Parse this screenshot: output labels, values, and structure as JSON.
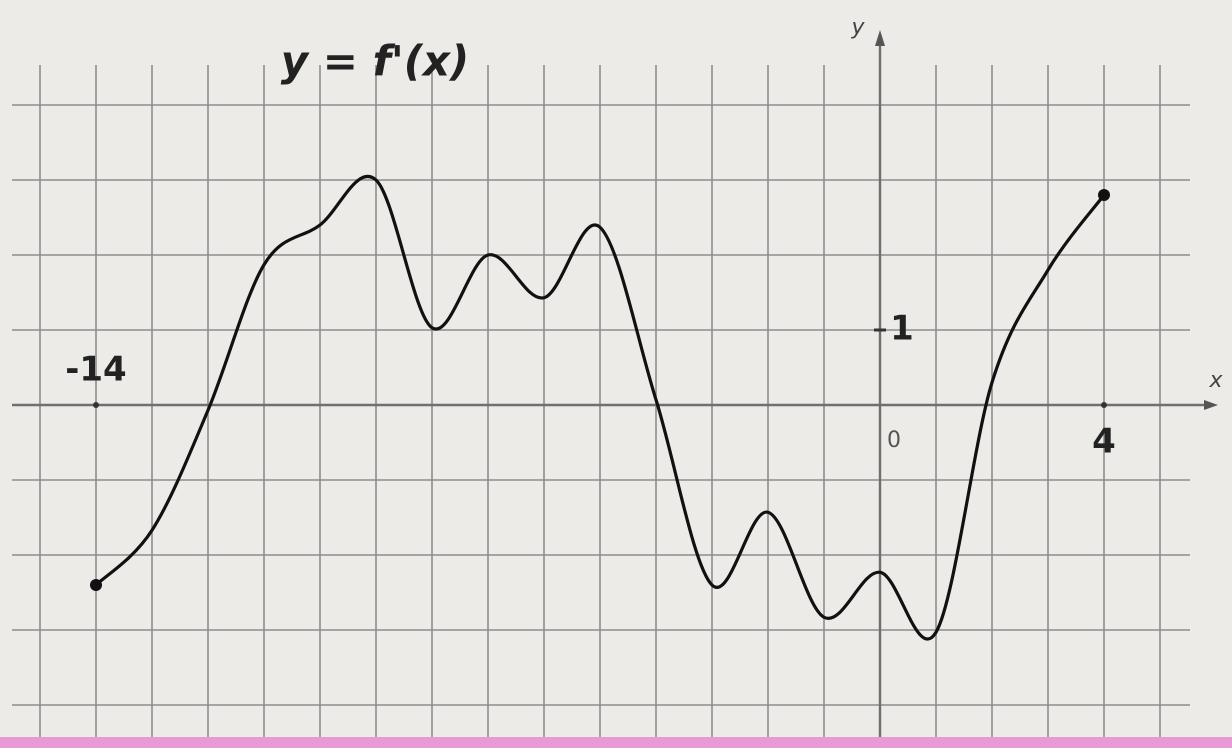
{
  "chart_data": {
    "type": "line",
    "title": "y = f'(x)",
    "x_label": "x",
    "y_label": "y",
    "origin_label": "0",
    "x": [
      -14,
      -13,
      -12,
      -11,
      -10,
      -9,
      -8,
      -7,
      -6,
      -5,
      -4,
      -3,
      -2,
      -1,
      0,
      1,
      2,
      3,
      4
    ],
    "series": [
      {
        "name": "f'(x)",
        "color": "#111111",
        "values": [
          -2.4,
          -1.67,
          -0.07,
          1.87,
          2.4,
          3.0,
          1.03,
          2.0,
          1.43,
          2.37,
          0.07,
          -2.4,
          -1.43,
          -2.83,
          -2.23,
          -3.03,
          0.3,
          1.8,
          2.8
        ]
      }
    ],
    "xlim": [
      -15.5,
      5.5
    ],
    "ylim": [
      -4.5,
      4.7
    ],
    "xticks": [
      -15,
      -14,
      -13,
      -12,
      -11,
      -10,
      -9,
      -8,
      -7,
      -6,
      -5,
      -4,
      -3,
      -2,
      -1,
      0,
      1,
      2,
      3,
      4,
      5
    ],
    "yticks": [
      -4,
      -3,
      -2,
      -1,
      0,
      1,
      2,
      3,
      4
    ],
    "x_labeled_ticks": [
      -14,
      4
    ],
    "y_labeled_ticks": [
      1
    ],
    "grid": true
  }
}
